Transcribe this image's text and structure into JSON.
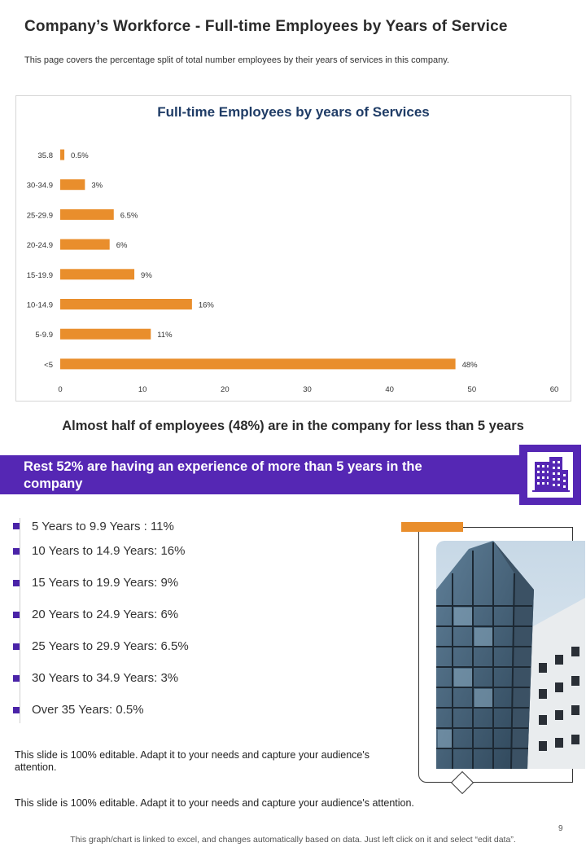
{
  "page": {
    "title": "Company’s Workforce - Full-time Employees by Years of Service",
    "subtitle": "This page covers the percentage split of total number employees by their years of services in this company."
  },
  "chart_data": {
    "type": "bar",
    "orientation": "horizontal",
    "title": "Full-time Employees by years of Services",
    "categories": [
      "35.8",
      "30-34.9",
      "25-29.9",
      "20-24.9",
      "15-19.9",
      "10-14.9",
      "5-9.9",
      "<5"
    ],
    "values": [
      0.5,
      3,
      6.5,
      6,
      9,
      16,
      11,
      48
    ],
    "data_labels": [
      "0.5%",
      "3%",
      "6.5%",
      "6%",
      "9%",
      "16%",
      "11%",
      "48%"
    ],
    "x_ticks": [
      "0",
      "10",
      "20",
      "30",
      "40",
      "50",
      "60"
    ],
    "xlim": [
      0,
      60
    ],
    "bar_color": "#e98e2c",
    "grid": false,
    "xlabel": "",
    "ylabel": ""
  },
  "headline": "Almost half of employees (48%) are in the company for less than 5 years",
  "banner": {
    "text": "Rest 52% are having an experience of more than 5 years in the company",
    "icon": "office-building-icon",
    "color": "#5527b4"
  },
  "bullets": [
    "5 Years to 9.9 Years : 11%",
    "10 Years to 14.9 Years: 16%",
    "15 Years to 19.9 Years: 9%",
    "20 Years to 24.9 Years: 6%",
    "25 Years to 29.9 Years: 6.5%",
    "30 Years to 34.9 Years: 3%",
    "Over 35 Years: 0.5%"
  ],
  "notes": {
    "note1": "This slide is 100% editable. Adapt it to your needs and capture your audience's attention.",
    "note2": "This slide is 100% editable. Adapt it to your needs and capture your audience's attention."
  },
  "page_number": "9",
  "footer": "This graph/chart is linked to excel, and changes automatically based on data. Just left click on it and select “edit data”."
}
